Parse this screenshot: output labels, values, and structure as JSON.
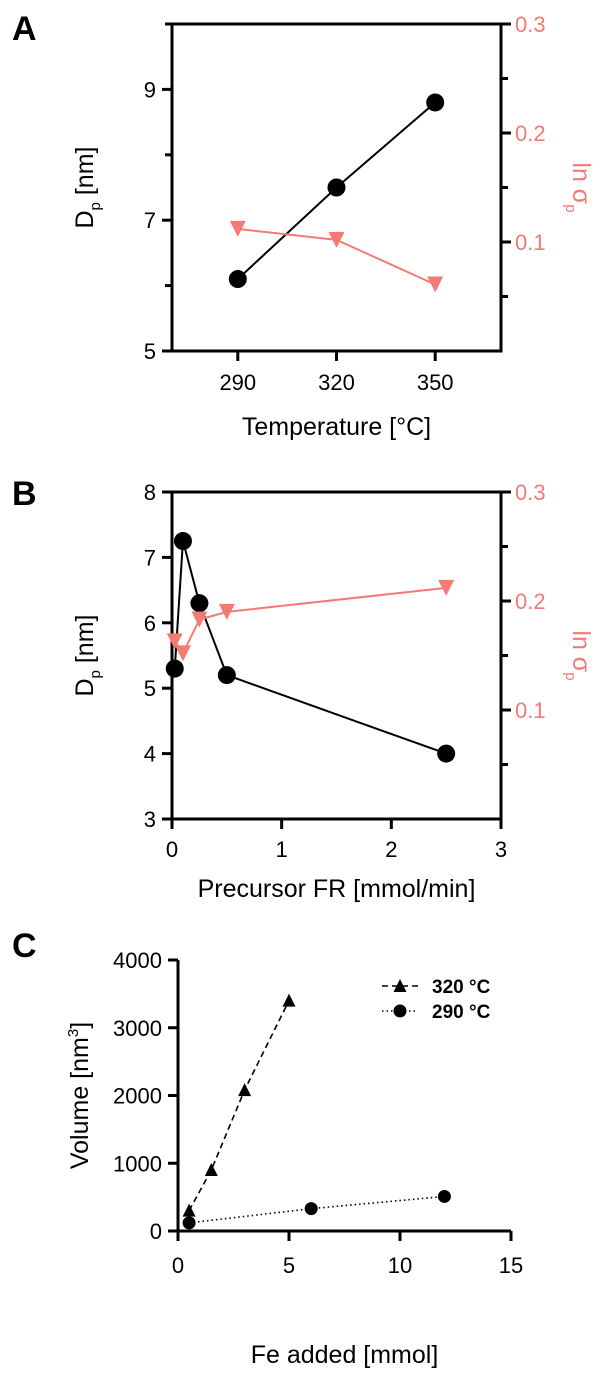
{
  "colors": {
    "black": "#000000",
    "red": "#f47a74"
  },
  "chart_data": [
    {
      "panel": "A",
      "type": "line",
      "xlabel": "Temperature [°C]",
      "ylabel": {
        "main": "D",
        "sub": "p",
        "rest": " [nm]"
      },
      "y2label": {
        "main": "ln σ",
        "sub": "p"
      },
      "xlim": [
        270,
        370
      ],
      "ylim": [
        5,
        10
      ],
      "y2lim": [
        0,
        0.3
      ],
      "x_ticks": [
        290,
        320,
        350
      ],
      "x_tick_labels": [
        "290",
        "320",
        "350"
      ],
      "y_ticks": [
        5,
        7,
        9
      ],
      "y_tick_labels": [
        "5",
        "7",
        "9"
      ],
      "y_minor_ticks": [
        6,
        8,
        10
      ],
      "y2_ticks": [
        0.1,
        0.2,
        0.3
      ],
      "y2_tick_labels": [
        "0.1",
        "0.2",
        "0.3"
      ],
      "y2_minor_ticks": [
        0.05,
        0.15,
        0.25
      ],
      "series": [
        {
          "axis": "left",
          "marker": "circle",
          "color": "#000000",
          "x": [
            290,
            320,
            350
          ],
          "y": [
            6.1,
            7.5,
            8.8
          ]
        },
        {
          "axis": "right",
          "marker": "triangle-down",
          "color": "#f47a74",
          "x": [
            290,
            320,
            350
          ],
          "y": [
            0.112,
            0.102,
            0.061
          ]
        }
      ]
    },
    {
      "panel": "B",
      "type": "line",
      "xlabel": "Precursor FR [mmol/min]",
      "ylabel": {
        "main": "D",
        "sub": "p",
        "rest": " [nm]"
      },
      "y2label": {
        "main": "ln σ",
        "sub": "p"
      },
      "xlim": [
        0,
        3
      ],
      "ylim": [
        3,
        8
      ],
      "y2lim": [
        0,
        0.3
      ],
      "x_ticks": [
        0,
        1,
        2,
        3
      ],
      "x_tick_labels": [
        "0",
        "1",
        "2",
        "3"
      ],
      "y_ticks": [
        3,
        4,
        5,
        6,
        7,
        8
      ],
      "y_tick_labels": [
        "3",
        "4",
        "5",
        "6",
        "7",
        "8"
      ],
      "y_minor_ticks": [],
      "y2_ticks": [
        0.1,
        0.2,
        0.3
      ],
      "y2_tick_labels": [
        "0.1",
        "0.2",
        "0.3"
      ],
      "y2_minor_ticks": [
        0.05,
        0.15,
        0.25
      ],
      "series": [
        {
          "axis": "left",
          "marker": "circle",
          "color": "#000000",
          "x": [
            0.025,
            0.1,
            0.25,
            0.5,
            2.5
          ],
          "y": [
            5.3,
            7.25,
            6.3,
            5.2,
            4.0
          ]
        },
        {
          "axis": "right",
          "marker": "triangle-down",
          "color": "#f47a74",
          "x": [
            0.025,
            0.1,
            0.25,
            0.5,
            2.5
          ],
          "y": [
            0.163,
            0.152,
            0.183,
            0.19,
            0.212
          ]
        }
      ]
    },
    {
      "panel": "C",
      "type": "line",
      "xlabel": "Fe added [mmol]",
      "ylabel": {
        "main": "Volume [nm",
        "sup": "3",
        "rest": "]"
      },
      "xlim": [
        0,
        15
      ],
      "ylim": [
        0,
        4000
      ],
      "x_ticks": [
        0,
        5,
        10,
        15
      ],
      "x_tick_labels": [
        "0",
        "5",
        "10",
        "15"
      ],
      "y_ticks": [
        0,
        1000,
        2000,
        3000,
        4000
      ],
      "y_tick_labels": [
        "0",
        "1000",
        "2000",
        "3000",
        "4000"
      ],
      "legend_position": "top-right",
      "series": [
        {
          "name": "320 °C",
          "marker": "triangle",
          "line": "dashed",
          "color": "#000000",
          "x": [
            0.5,
            1.5,
            3,
            5
          ],
          "y": [
            300,
            900,
            2080,
            3400
          ]
        },
        {
          "name": "290 °C",
          "marker": "circle",
          "line": "dotted",
          "color": "#000000",
          "x": [
            0.5,
            6,
            12
          ],
          "y": [
            120,
            330,
            510
          ]
        }
      ]
    }
  ]
}
